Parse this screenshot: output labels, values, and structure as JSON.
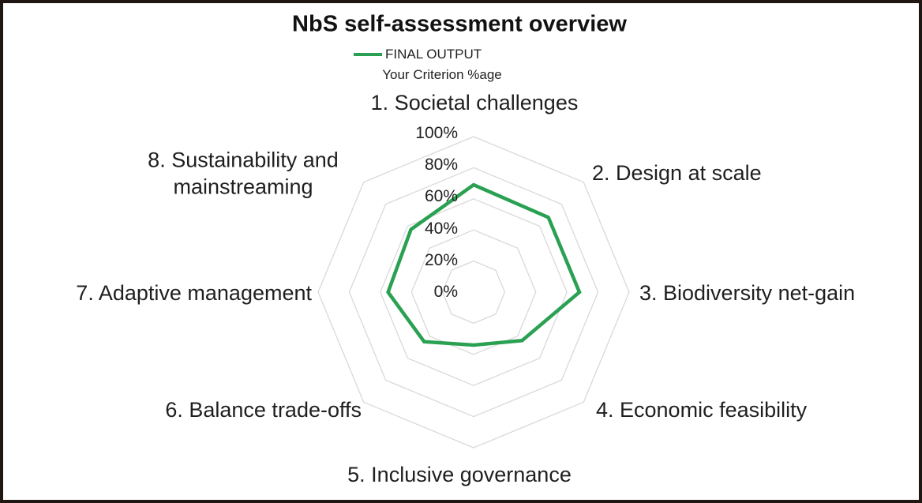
{
  "frame": {
    "border_color": "#211712",
    "background": "#ffffff"
  },
  "chart_data": {
    "type": "radar",
    "title": "NbS self-assessment overview",
    "legend": {
      "series_label": "FINAL OUTPUT",
      "subtitle": "Your Criterion %age",
      "position": "top-center"
    },
    "categories": [
      "1. Societal challenges",
      "2. Design at scale",
      "3. Biodiversity net-gain",
      "4. Economic feasibility",
      "5. Inclusive governance",
      "6. Balance trade-offs",
      "7. Adaptive management",
      "8. Sustainability and mainstreaming"
    ],
    "series": [
      {
        "name": "FINAL OUTPUT",
        "color": "#2aa152",
        "unit": "%",
        "values": [
          69,
          68,
          68,
          44,
          34,
          45,
          55,
          57
        ]
      }
    ],
    "radial_axis": {
      "min": 0,
      "max": 100,
      "tick_labels": [
        "0%",
        "20%",
        "40%",
        "60%",
        "80%",
        "100%"
      ],
      "grid_rings": true,
      "spokes": false
    },
    "style": {
      "grid_color": "#d9d9d9",
      "text_color": "#1f1f1f",
      "line_width": 4.5
    }
  }
}
